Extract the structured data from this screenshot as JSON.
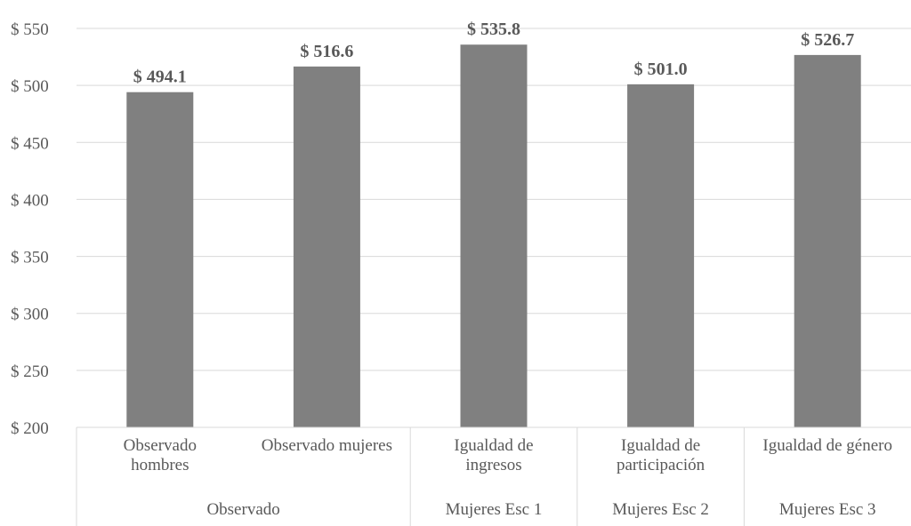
{
  "chart_data": {
    "type": "bar",
    "categories": [
      "Observado hombres",
      "Observado mujeres",
      "Igualdad de ingresos",
      "Igualdad de participación",
      "Igualdad de género"
    ],
    "category_labels": [
      [
        "Observado",
        "hombres"
      ],
      [
        "Observado mujeres"
      ],
      [
        "Igualdad de",
        "ingresos"
      ],
      [
        "Igualdad de",
        "participación"
      ],
      [
        "Igualdad de género"
      ]
    ],
    "groups": [
      {
        "label": "Observado",
        "span": 2
      },
      {
        "label": "Mujeres Esc 1",
        "span": 1
      },
      {
        "label": "Mujeres Esc 2",
        "span": 1
      },
      {
        "label": "Mujeres Esc 3",
        "span": 1
      }
    ],
    "values": [
      494.1,
      516.6,
      535.8,
      501.0,
      526.7
    ],
    "data_labels": [
      "$ 494.1",
      "$ 516.6",
      "$ 535.8",
      "$ 501.0",
      "$ 526.7"
    ],
    "yticks": [
      200,
      250,
      300,
      350,
      400,
      450,
      500,
      550
    ],
    "ytick_labels": [
      "$ 200",
      "$ 250",
      "$ 300",
      "$ 350",
      "$ 400",
      "$ 450",
      "$ 500",
      "$ 550"
    ],
    "ylim": [
      200,
      550
    ],
    "grid": true,
    "bar_color": "#808080",
    "grid_color": "#d9d9d9",
    "text_color": "#595959"
  }
}
